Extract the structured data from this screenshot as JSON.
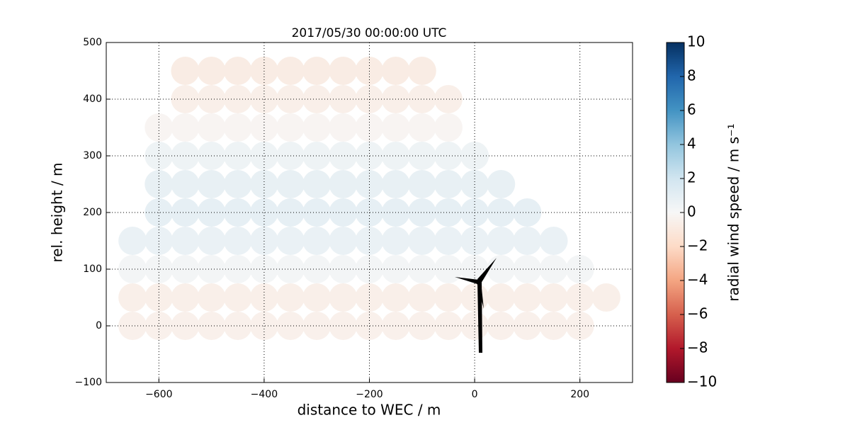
{
  "chart_data": {
    "type": "scatter",
    "title": "2017/05/30 00:00:00 UTC",
    "x_label": "distance to WEC / m",
    "y_label": "rel. height / m",
    "colorbar_label": "radial wind speed / m s⁻¹",
    "x": [
      -650,
      -600,
      -550,
      -500,
      -450,
      -400,
      -350,
      -300,
      -250,
      -200,
      -150,
      -100,
      -50,
      0,
      50,
      100,
      150,
      200,
      -650,
      -600,
      -550,
      -500,
      -450,
      -400,
      -350,
      -300,
      -250,
      -200,
      -150,
      -100,
      -50,
      0,
      50,
      100,
      150,
      200,
      250,
      -650,
      -600,
      -550,
      -500,
      -450,
      -400,
      -350,
      -300,
      -250,
      -200,
      -150,
      -100,
      -50,
      0,
      50,
      100,
      150,
      200,
      -650,
      -600,
      -550,
      -500,
      -450,
      -400,
      -350,
      -300,
      -250,
      -200,
      -150,
      -100,
      -50,
      0,
      50,
      100,
      150,
      -600,
      -550,
      -500,
      -450,
      -400,
      -350,
      -300,
      -250,
      -200,
      -150,
      -100,
      -50,
      0,
      50,
      100,
      -600,
      -550,
      -500,
      -450,
      -400,
      -350,
      -300,
      -250,
      -200,
      -150,
      -100,
      -50,
      0,
      50,
      -600,
      -550,
      -500,
      -450,
      -400,
      -350,
      -300,
      -250,
      -200,
      -150,
      -100,
      -50,
      0,
      -600,
      -550,
      -500,
      -450,
      -400,
      -350,
      -300,
      -250,
      -200,
      -150,
      -100,
      -50,
      -550,
      -500,
      -450,
      -400,
      -350,
      -300,
      -250,
      -200,
      -150,
      -100,
      -50,
      -550,
      -500,
      -450,
      -400,
      -350,
      -300,
      -250,
      -200,
      -150,
      -100
    ],
    "y": [
      0,
      0,
      0,
      0,
      0,
      0,
      0,
      0,
      0,
      0,
      0,
      0,
      0,
      0,
      0,
      0,
      0,
      0,
      50,
      50,
      50,
      50,
      50,
      50,
      50,
      50,
      50,
      50,
      50,
      50,
      50,
      50,
      50,
      50,
      50,
      50,
      50,
      100,
      100,
      100,
      100,
      100,
      100,
      100,
      100,
      100,
      100,
      100,
      100,
      100,
      100,
      100,
      100,
      100,
      100,
      150,
      150,
      150,
      150,
      150,
      150,
      150,
      150,
      150,
      150,
      150,
      150,
      150,
      150,
      150,
      150,
      150,
      200,
      200,
      200,
      200,
      200,
      200,
      200,
      200,
      200,
      200,
      200,
      200,
      200,
      200,
      200,
      250,
      250,
      250,
      250,
      250,
      250,
      250,
      250,
      250,
      250,
      250,
      250,
      250,
      250,
      300,
      300,
      300,
      300,
      300,
      300,
      300,
      300,
      300,
      300,
      300,
      300,
      300,
      350,
      350,
      350,
      350,
      350,
      350,
      350,
      350,
      350,
      350,
      350,
      350,
      400,
      400,
      400,
      400,
      400,
      400,
      400,
      400,
      400,
      400,
      400,
      450,
      450,
      450,
      450,
      450,
      450,
      450,
      450,
      450,
      450
    ],
    "values": [
      -0.5,
      -0.5,
      -0.5,
      -0.5,
      -0.5,
      -0.5,
      -0.5,
      -0.5,
      -0.5,
      -0.5,
      -0.5,
      -0.5,
      -0.5,
      -0.5,
      -0.5,
      -0.5,
      -0.5,
      -0.5,
      -0.6,
      -0.6,
      -0.6,
      -0.6,
      -0.6,
      -0.6,
      -0.6,
      -0.6,
      -0.6,
      -0.6,
      -0.6,
      -0.6,
      -0.6,
      -0.6,
      -0.6,
      -0.6,
      -0.6,
      -0.6,
      -0.6,
      0.2,
      0.2,
      0.2,
      0.2,
      0.2,
      0.2,
      0.2,
      0.2,
      0.2,
      0.2,
      0.2,
      0.2,
      0.2,
      0.2,
      0.2,
      0.2,
      0.2,
      0.2,
      0.7,
      0.7,
      0.7,
      0.7,
      0.7,
      0.7,
      0.7,
      0.7,
      0.7,
      0.7,
      0.7,
      0.7,
      0.7,
      0.7,
      0.7,
      0.7,
      0.7,
      0.9,
      0.9,
      0.9,
      0.9,
      0.9,
      0.9,
      0.9,
      0.9,
      0.9,
      0.9,
      0.9,
      0.9,
      0.9,
      0.9,
      0.9,
      0.8,
      0.8,
      0.8,
      0.8,
      0.8,
      0.8,
      0.8,
      0.8,
      0.8,
      0.8,
      0.8,
      0.8,
      0.8,
      0.8,
      0.5,
      0.5,
      0.5,
      0.5,
      0.5,
      0.5,
      0.5,
      0.5,
      0.5,
      0.5,
      0.5,
      0.5,
      0.5,
      -0.2,
      -0.2,
      -0.2,
      -0.2,
      -0.2,
      -0.2,
      -0.2,
      -0.2,
      -0.2,
      -0.2,
      -0.2,
      -0.2,
      -0.6,
      -0.6,
      -0.6,
      -0.6,
      -0.6,
      -0.6,
      -0.6,
      -0.6,
      -0.6,
      -0.6,
      -0.6,
      -0.8,
      -0.8,
      -0.8,
      -0.8,
      -0.8,
      -0.8,
      -0.8,
      -0.8,
      -0.8,
      -0.8
    ],
    "xlim": [
      -700,
      300
    ],
    "xticks": [
      {
        "value": -600,
        "label": "−600"
      },
      {
        "value": -400,
        "label": "−400"
      },
      {
        "value": -200,
        "label": "−200"
      },
      0,
      200
    ],
    "ylim": [
      -100,
      500
    ],
    "yticks": [
      {
        "value": -100,
        "label": "−100"
      },
      0,
      100,
      200,
      300,
      400,
      500
    ],
    "clim": [
      -10,
      10
    ],
    "cticks": [
      {
        "value": -10,
        "label": "−10"
      },
      {
        "value": -8,
        "label": "−8"
      },
      {
        "value": -6,
        "label": "−6"
      },
      {
        "value": -4,
        "label": "−4"
      },
      {
        "value": -2,
        "label": "−2"
      },
      0,
      2,
      4,
      6,
      8,
      10
    ],
    "colormap": [
      "#67001f",
      "#b2182b",
      "#d6604d",
      "#f4a582",
      "#fddbc7",
      "#f7f7f7",
      "#d1e5f0",
      "#92c5de",
      "#4393c3",
      "#2166ac",
      "#053061"
    ],
    "grid": true
  }
}
